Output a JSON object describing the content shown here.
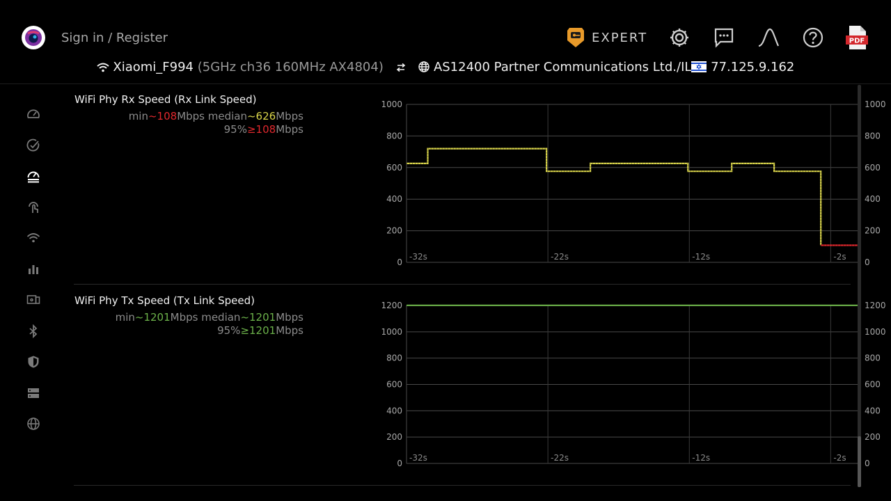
{
  "header": {
    "signin_label": "Sign in / Register",
    "expert_label": "EXPERT",
    "tools": [
      "settings-icon",
      "chat-icon",
      "graph-curve-icon",
      "help-icon",
      "pdf-icon"
    ],
    "pdf_badge": "PDF"
  },
  "network": {
    "ssid": "Xiaomi_F994",
    "details": "(5GHz ch36 160MHz AX4804)",
    "isp": "AS12400 Partner Communications Ltd./IL",
    "ip": "77.125.9.162"
  },
  "sidebar": {
    "items": [
      "speedometer-icon",
      "check-circle-icon",
      "speed-test-icon",
      "touch-icon",
      "wifi-icon",
      "bar-chart-icon",
      "devices-icon",
      "bluetooth-icon",
      "shield-icon",
      "server-icon",
      "globe-icon"
    ],
    "active_index": 2
  },
  "colors": {
    "yellow": "#d9d44b",
    "red": "#e0282d",
    "green": "#6cb24a",
    "grid": "#4a4a4a",
    "tick": "#a9a9a9"
  },
  "panels": [
    {
      "title": "WiFi Phy Rx Speed (Rx Link Speed)",
      "stats_min_prefix": "min",
      "stats_min_value": "~108",
      "stats_min_value_color": "red",
      "stats_median_mid": "Mbps median",
      "stats_median_value": "~626",
      "stats_median_value_color": "yellow",
      "stats_median_suffix": "Mbps",
      "stats_p95_prefix": "95%",
      "stats_p95_value": "≥108",
      "stats_p95_value_color": "red",
      "stats_p95_suffix": "Mbps"
    },
    {
      "title": "WiFi Phy Tx Speed (Tx Link Speed)",
      "stats_min_prefix": "min",
      "stats_min_value": "~1201",
      "stats_min_value_color": "green",
      "stats_median_mid": "Mbps median",
      "stats_median_value": "~1201",
      "stats_median_value_color": "green",
      "stats_median_suffix": "Mbps",
      "stats_p95_prefix": "95%",
      "stats_p95_value": "≥1201",
      "stats_p95_value_color": "green",
      "stats_p95_suffix": "Mbps"
    }
  ],
  "chart_data": [
    {
      "type": "line",
      "title": "WiFi Phy Rx Speed (Rx Link Speed)",
      "x_unit": "s",
      "xlim": [
        -33,
        -1
      ],
      "ylim": [
        0,
        1000
      ],
      "yticks": [
        0,
        200,
        400,
        600,
        800,
        1000
      ],
      "x_gridlines": [
        -23,
        -13,
        -3
      ],
      "xtick_labels": [
        {
          "x": -32.9,
          "label": "-32s"
        },
        {
          "x": -22.9,
          "label": "-22s"
        },
        {
          "x": -12.9,
          "label": "-12s"
        },
        {
          "x": -2.9,
          "label": "-2s"
        }
      ],
      "grid": true,
      "right_axis": true,
      "series": [
        {
          "color": "yellow",
          "step": true,
          "points": [
            [
              -33,
              626
            ],
            [
              -31.5,
              626
            ],
            [
              -31.5,
              720
            ],
            [
              -23.1,
              720
            ],
            [
              -23.1,
              576
            ],
            [
              -20,
              576
            ],
            [
              -20,
              626
            ],
            [
              -13.1,
              626
            ],
            [
              -13.1,
              576
            ],
            [
              -10,
              576
            ],
            [
              -10,
              626
            ],
            [
              -7,
              626
            ],
            [
              -7,
              576
            ],
            [
              -3.7,
              576
            ],
            [
              -3.7,
              108
            ]
          ]
        },
        {
          "color": "red",
          "step": true,
          "points": [
            [
              -3.7,
              108
            ],
            [
              -1,
              108
            ]
          ]
        }
      ]
    },
    {
      "type": "line",
      "title": "WiFi Phy Tx Speed (Tx Link Speed)",
      "x_unit": "s",
      "xlim": [
        -33,
        -1
      ],
      "ylim": [
        0,
        1200
      ],
      "yticks": [
        0,
        200,
        400,
        600,
        800,
        1000,
        1200
      ],
      "x_gridlines": [
        -23,
        -13,
        -3
      ],
      "xtick_labels": [
        {
          "x": -32.9,
          "label": "-32s"
        },
        {
          "x": -22.9,
          "label": "-22s"
        },
        {
          "x": -12.9,
          "label": "-12s"
        },
        {
          "x": -2.9,
          "label": "-2s"
        }
      ],
      "grid": true,
      "right_axis": true,
      "series": [
        {
          "color": "green",
          "step": true,
          "points": [
            [
              -33,
              1201
            ],
            [
              -1,
              1201
            ]
          ]
        }
      ]
    }
  ]
}
